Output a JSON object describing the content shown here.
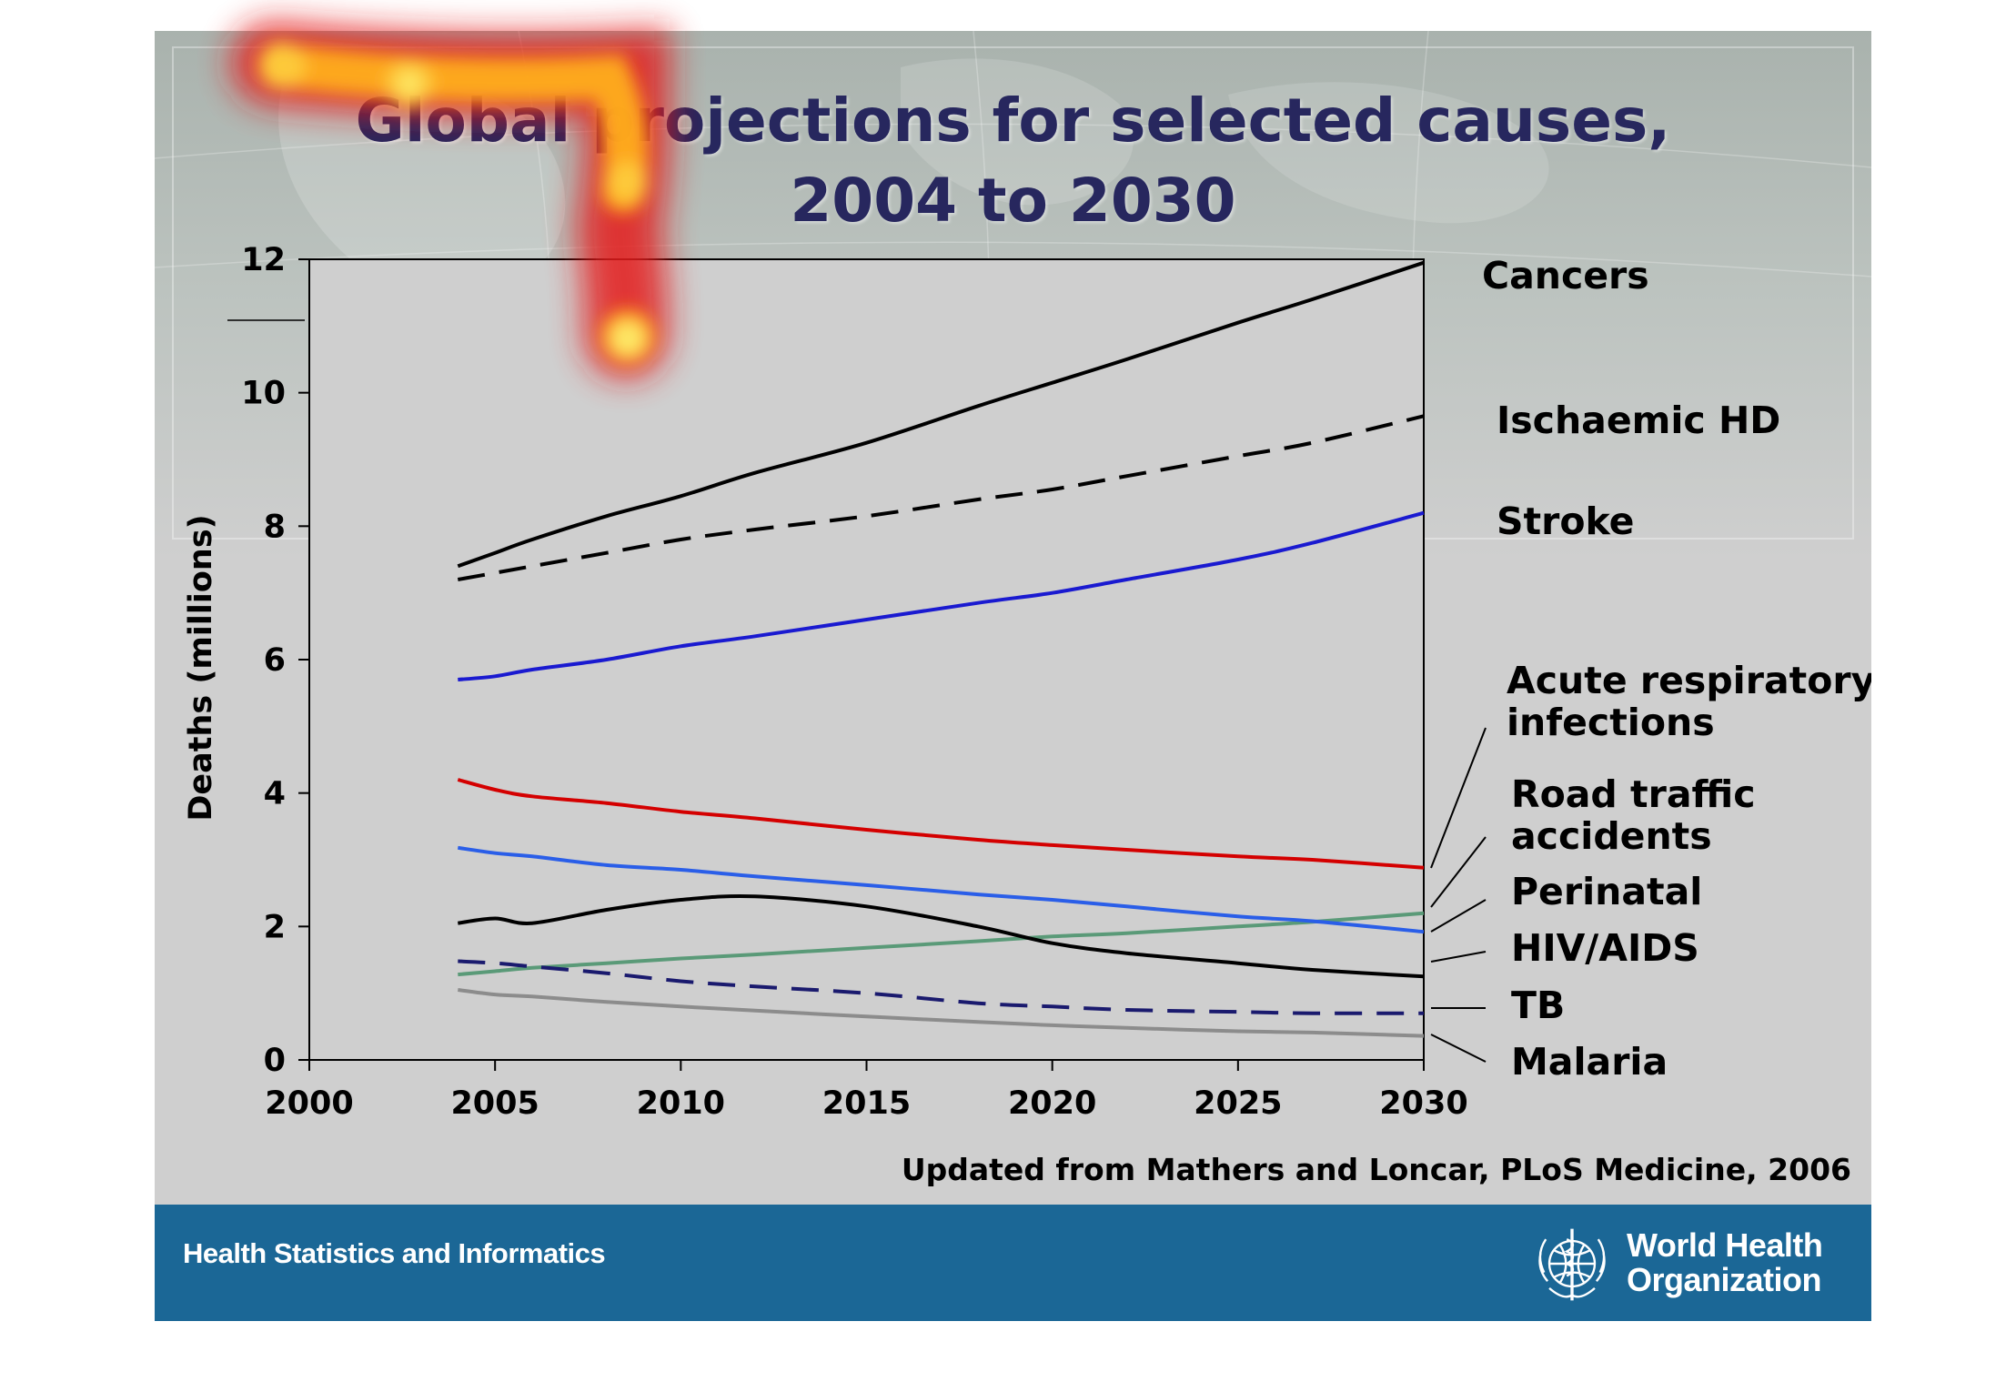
{
  "title_line1": "Global projections for selected causes,",
  "title_line2": "2004 to 2030",
  "source": "Updated from Mathers and Loncar, PLoS Medicine, 2006",
  "footer": {
    "left_text": "Health Statistics and Informatics",
    "org_line1": "World Health",
    "org_line2": "Organization",
    "logo_icon": "who-emblem-icon"
  },
  "colors": {
    "slide_bg": "#cfcfcf",
    "title": "#27275e",
    "footer_band": "#1b6796"
  },
  "chart_data": {
    "type": "line",
    "ylabel": "Deaths (millions)",
    "xlim": [
      2000,
      2030
    ],
    "ylim": [
      0,
      12
    ],
    "xticks": [
      2000,
      2005,
      2010,
      2015,
      2020,
      2025,
      2030
    ],
    "yticks": [
      0,
      2,
      4,
      6,
      8,
      10,
      12
    ],
    "grid": false,
    "legend": "direct labels to the right of the lines",
    "x": [
      2004,
      2005,
      2006,
      2008,
      2010,
      2012,
      2015,
      2018,
      2020,
      2022,
      2025,
      2027,
      2030
    ],
    "series": [
      {
        "name": "Cancers",
        "color": "#000000",
        "dash": "solid",
        "values": [
          7.4,
          7.6,
          7.8,
          8.15,
          8.45,
          8.8,
          9.25,
          9.8,
          10.15,
          10.5,
          11.05,
          11.4,
          11.95
        ]
      },
      {
        "name": "Ischaemic HD",
        "color": "#000000",
        "dash": "dashed",
        "values": [
          7.2,
          7.3,
          7.4,
          7.6,
          7.8,
          7.95,
          8.15,
          8.4,
          8.55,
          8.75,
          9.05,
          9.25,
          9.65
        ]
      },
      {
        "name": "Stroke",
        "color": "#1a1ad0",
        "dash": "solid",
        "values": [
          5.7,
          5.75,
          5.85,
          6.0,
          6.2,
          6.35,
          6.6,
          6.85,
          7.0,
          7.2,
          7.5,
          7.75,
          8.2
        ]
      },
      {
        "name": "Acute respiratory infections",
        "color": "#d40000",
        "dash": "solid",
        "values": [
          4.2,
          4.05,
          3.95,
          3.85,
          3.72,
          3.62,
          3.45,
          3.3,
          3.22,
          3.15,
          3.05,
          3.0,
          2.88
        ]
      },
      {
        "name": "Road traffic accidents",
        "color": "#5a9a78",
        "dash": "solid",
        "values": [
          1.28,
          1.33,
          1.38,
          1.45,
          1.52,
          1.58,
          1.68,
          1.78,
          1.85,
          1.9,
          2.0,
          2.07,
          2.2
        ]
      },
      {
        "name": "Perinatal",
        "color": "#2a5ee8",
        "dash": "solid",
        "values": [
          3.18,
          3.1,
          3.05,
          2.92,
          2.85,
          2.75,
          2.62,
          2.48,
          2.4,
          2.3,
          2.15,
          2.08,
          1.92
        ]
      },
      {
        "name": "HIV/AIDS",
        "color": "#000000",
        "dash": "solid",
        "values": [
          2.05,
          2.12,
          2.05,
          2.25,
          2.4,
          2.45,
          2.3,
          2.0,
          1.75,
          1.6,
          1.45,
          1.35,
          1.25
        ]
      },
      {
        "name": "TB",
        "color": "#1a1a6e",
        "dash": "dashed",
        "values": [
          1.48,
          1.45,
          1.4,
          1.3,
          1.18,
          1.1,
          1.0,
          0.85,
          0.8,
          0.75,
          0.72,
          0.7,
          0.7
        ]
      },
      {
        "name": "Malaria",
        "color": "#8c8c8c",
        "dash": "solid",
        "values": [
          1.05,
          0.98,
          0.95,
          0.87,
          0.8,
          0.74,
          0.65,
          0.57,
          0.52,
          0.48,
          0.43,
          0.41,
          0.36
        ]
      }
    ],
    "direct_labels": [
      {
        "lines": [
          "Cancers"
        ]
      },
      {
        "lines": [
          "Ischaemic HD"
        ]
      },
      {
        "lines": [
          "Stroke"
        ]
      },
      {
        "lines": [
          "Acute respiratory",
          "infections"
        ]
      },
      {
        "lines": [
          "Road traffic",
          "accidents"
        ]
      },
      {
        "lines": [
          "Perinatal"
        ]
      },
      {
        "lines": [
          "HIV/AIDS"
        ]
      },
      {
        "lines": [
          "TB"
        ]
      },
      {
        "lines": [
          "Malaria"
        ]
      }
    ]
  }
}
